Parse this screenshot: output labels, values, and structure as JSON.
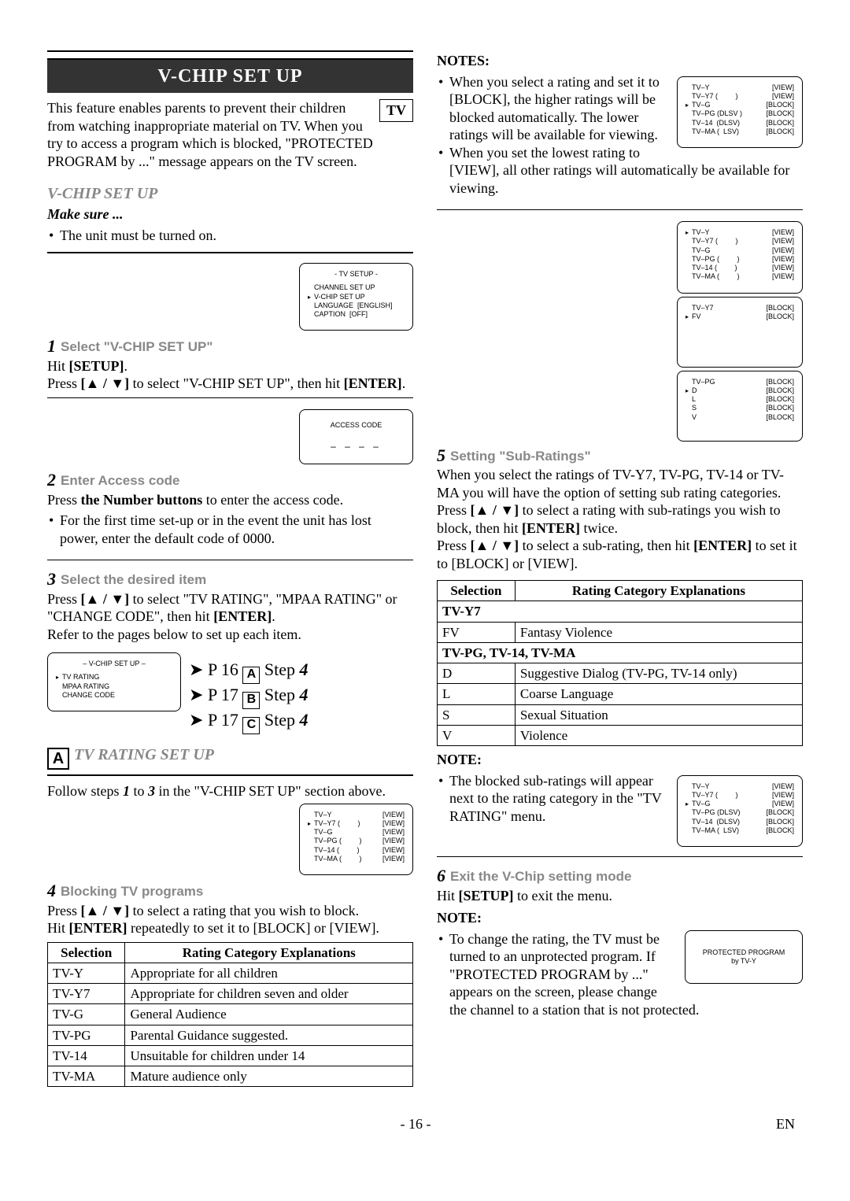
{
  "title": "V-CHIP SET UP",
  "tv_badge": "TV",
  "intro": "This feature enables parents to prevent their children from watching inappropriate material on TV. When you try to access a program which is blocked, \"PROTECTED PROGRAM by ...\" message appears on the TV screen.",
  "h2_1": "V-CHIP SET UP",
  "makesure_h": "Make sure ...",
  "makesure_1": "The unit must be turned on.",
  "step1": {
    "num": "1",
    "title": "Select \"V-CHIP SET UP\"",
    "l1": "Hit ",
    "l1b": "[SETUP]",
    "l1c": ".",
    "l2a": "Press ",
    "l2b": "[▲ / ▼]",
    "l2c": " to select \"V-CHIP SET UP\", then hit ",
    "l2d": "[ENTER]",
    "l2e": "."
  },
  "fig1": {
    "title": "- TV SETUP -",
    "rows": [
      {
        "p": false,
        "l": "CHANNEL SET UP",
        "r": ""
      },
      {
        "p": true,
        "l": "V-CHIP SET UP",
        "r": ""
      },
      {
        "p": false,
        "l": "LANGUAGE  [ENGLISH]",
        "r": ""
      },
      {
        "p": false,
        "l": "CAPTION  [OFF]",
        "r": ""
      }
    ]
  },
  "step2": {
    "num": "2",
    "title": "Enter Access code",
    "l1": "Press ",
    "l1b": "the Number buttons",
    "l1c": " to enter the access code.",
    "bullet": "For the first time set-up or in the event the unit has lost power, enter the default code of 0000."
  },
  "fig2": {
    "title": "ACCESS CODE",
    "boxes": "– – – –"
  },
  "step3": {
    "num": "3",
    "title": "Select the desired item",
    "l1": "Press ",
    "l1b": "[▲ / ▼]",
    "l1c": " to select \"TV RATING\", \"MPAA RATING\" or \"CHANGE CODE\", then hit ",
    "l1d": "[ENTER]",
    "l1e": ".",
    "l2": "Refer to the pages below to set up each item."
  },
  "fig3": {
    "title": "– V-CHIP SET UP –",
    "rows": [
      {
        "p": true,
        "l": "TV RATING",
        "r": ""
      },
      {
        "p": false,
        "l": "MPAA RATING",
        "r": ""
      },
      {
        "p": false,
        "l": "CHANGE CODE",
        "r": ""
      }
    ]
  },
  "pageA": "P 16 ",
  "pageA2": " Step ",
  "pageB": "P 17 ",
  "pageC": "P 17 ",
  "step4_num": "4",
  "stepA_letter": "A",
  "stepB_letter": "B",
  "stepC_letter": "C",
  "h2_A": "TV RATING SET UP",
  "A_intro": "Follow steps ",
  "A_intro_1": "1",
  "A_intro_mid": " to ",
  "A_intro_3": "3",
  "A_intro_end": " in the \"V-CHIP SET UP\" section above.",
  "step4": {
    "num": "4",
    "title": "Blocking TV programs",
    "l1": "Press ",
    "l1b": "[▲ / ▼]",
    "l1c": " to select a rating that you wish to block.",
    "l2": "Hit ",
    "l2b": "[ENTER]",
    "l2c": " repeatedly to set it to [BLOCK] or [VIEW]."
  },
  "fig4rows": [
    {
      "p": false,
      "l": "TV–Y",
      "r": "[VIEW]"
    },
    {
      "p": true,
      "l": "TV–Y7 (         )",
      "r": "[VIEW]"
    },
    {
      "p": false,
      "l": "TV–G",
      "r": "[VIEW]"
    },
    {
      "p": false,
      "l": "TV–PG (         )",
      "r": "[VIEW]"
    },
    {
      "p": false,
      "l": "TV–14 (         )",
      "r": "[VIEW]"
    },
    {
      "p": false,
      "l": "TV–MA (         )",
      "r": "[VIEW]"
    }
  ],
  "table1": {
    "h1": "Selection",
    "h2": "Rating Category Explanations",
    "rows": [
      [
        "TV-Y",
        "Appropriate for all children"
      ],
      [
        "TV-Y7",
        "Appropriate for children seven and older"
      ],
      [
        "TV-G",
        "General Audience"
      ],
      [
        "TV-PG",
        "Parental Guidance suggested."
      ],
      [
        "TV-14",
        "Unsuitable for children under 14"
      ],
      [
        "TV-MA",
        "Mature audience only"
      ]
    ]
  },
  "notes_h": "NOTES:",
  "note1": "When you select a rating and set it to [BLOCK], the higher ratings will be blocked automatically. The lower ratings will be available for viewing.",
  "note2": "When you set the lowest rating to [VIEW], all other ratings will automatically be available for viewing.",
  "figN1rows": [
    {
      "p": false,
      "l": "TV–Y",
      "r": "[VIEW]"
    },
    {
      "p": false,
      "l": "TV–Y7 (         )",
      "r": "[VIEW]"
    },
    {
      "p": true,
      "l": "TV–G",
      "r": "[BLOCK]"
    },
    {
      "p": false,
      "l": "TV–PG (DLSV )",
      "r": "[BLOCK]"
    },
    {
      "p": false,
      "l": "TV–14  (DLSV)",
      "r": "[BLOCK]"
    },
    {
      "p": false,
      "l": "TV–MA (  LSV)",
      "r": "[BLOCK]"
    }
  ],
  "step5": {
    "num": "5",
    "title": "Setting \"Sub-Ratings\"",
    "l1": "When you select the ratings of TV-Y7, TV-PG, TV-14 or TV-MA you will have the option of setting sub rating categories.",
    "l2a": "Press ",
    "l2b": "[▲ / ▼]",
    "l2c": " to select a rating with sub-ratings you wish to block, then hit ",
    "l2d": "[ENTER]",
    "l2e": " twice.",
    "l3a": "Press ",
    "l3b": "[▲ / ▼]",
    "l3c": " to select a sub-rating, then hit ",
    "l3d": "[ENTER]",
    "l3e": " to set it to [BLOCK] or [VIEW]."
  },
  "fig5arows": [
    {
      "p": true,
      "l": "TV–Y",
      "r": "[VIEW]"
    },
    {
      "p": false,
      "l": "TV–Y7 (         )",
      "r": "[VIEW]"
    },
    {
      "p": false,
      "l": "TV–G",
      "r": "[VIEW]"
    },
    {
      "p": false,
      "l": "TV–PG (         )",
      "r": "[VIEW]"
    },
    {
      "p": false,
      "l": "TV–14 (         )",
      "r": "[VIEW]"
    },
    {
      "p": false,
      "l": "TV–MA (         )",
      "r": "[VIEW]"
    }
  ],
  "fig5brows": [
    {
      "p": false,
      "l": "TV–Y7",
      "r": "[BLOCK]"
    },
    {
      "p": true,
      "l": "FV",
      "r": "[BLOCK]"
    }
  ],
  "fig5crows": [
    {
      "p": false,
      "l": "TV–PG",
      "r": "[BLOCK]"
    },
    {
      "p": true,
      "l": "D",
      "r": "[BLOCK]"
    },
    {
      "p": false,
      "l": "L",
      "r": "[BLOCK]"
    },
    {
      "p": false,
      "l": "S",
      "r": "[BLOCK]"
    },
    {
      "p": false,
      "l": "V",
      "r": "[BLOCK]"
    }
  ],
  "table2": {
    "h1": "Selection",
    "h2": "Rating Category Explanations",
    "rowhead1": "TV-Y7",
    "rows1": [
      [
        "FV",
        "Fantasy Violence"
      ]
    ],
    "rowhead2": "TV-PG, TV-14, TV-MA",
    "rows2": [
      [
        "D",
        "Suggestive Dialog   (TV-PG, TV-14 only)"
      ],
      [
        "L",
        "Coarse Language"
      ],
      [
        "S",
        "Sexual Situation"
      ],
      [
        "V",
        "Violence"
      ]
    ]
  },
  "note_h2": "NOTE:",
  "note3": "The blocked sub-ratings will appear next to the rating category in the \"TV RATING\" menu.",
  "figN3rows": [
    {
      "p": false,
      "l": "TV–Y",
      "r": "[VIEW]"
    },
    {
      "p": false,
      "l": "TV–Y7 (         )",
      "r": "[VIEW]"
    },
    {
      "p": true,
      "l": "TV–G",
      "r": "[VIEW]"
    },
    {
      "p": false,
      "l": "TV–PG (DLSV)",
      "r": "[BLOCK]"
    },
    {
      "p": false,
      "l": "TV–14  (DLSV)",
      "r": "[BLOCK]"
    },
    {
      "p": false,
      "l": "TV–MA (  LSV)",
      "r": "[BLOCK]"
    }
  ],
  "step6": {
    "num": "6",
    "title": "Exit the V-Chip setting mode",
    "l1": "Hit ",
    "l1b": "[SETUP]",
    "l1c": " to exit the menu."
  },
  "note4": "To change the rating, the TV must be turned to an unprotected program. If \"PROTECTED PROGRAM by ...\" appears on the screen, please change the channel to a station that is not protected.",
  "protected_fig": "PROTECTED PROGRAM\nby TV-Y",
  "page_num": "- 16 -",
  "page_lang": "EN"
}
